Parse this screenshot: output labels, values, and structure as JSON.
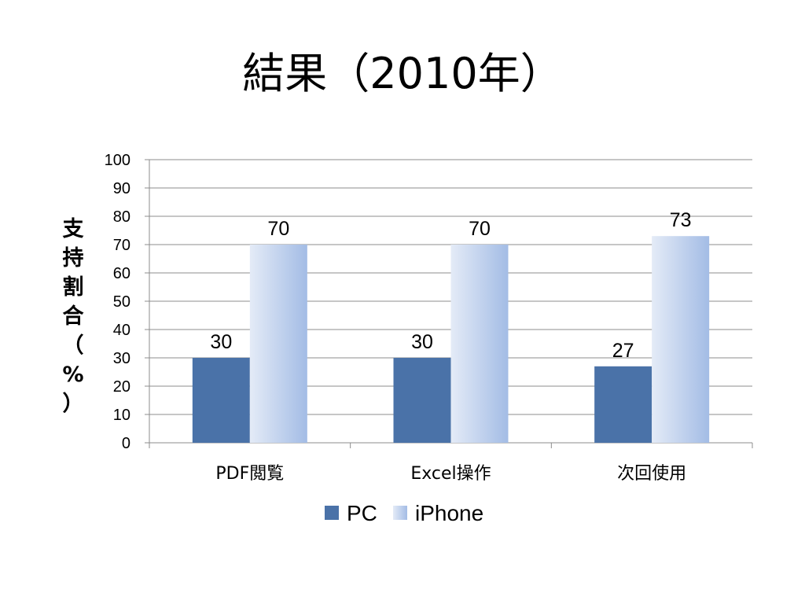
{
  "slide": {
    "title": "結果（2010年）"
  },
  "chart_data": {
    "type": "bar",
    "title": "",
    "xlabel": "",
    "ylabel": "支持割合（%）",
    "categories": [
      "PDF閲覧",
      "Excel操作",
      "次回使用"
    ],
    "series": [
      {
        "name": "PC",
        "values": [
          30,
          30,
          27
        ],
        "color": "#4a72a8"
      },
      {
        "name": "iPhone",
        "values": [
          70,
          70,
          73
        ],
        "color": "#b9cbea"
      }
    ],
    "ylim": [
      0,
      100
    ],
    "yticks": [
      "0",
      "10",
      "20",
      "30",
      "40",
      "50",
      "60",
      "70",
      "80",
      "90",
      "100"
    ],
    "grid": true,
    "data_labels": true,
    "legend_position": "bottom"
  }
}
